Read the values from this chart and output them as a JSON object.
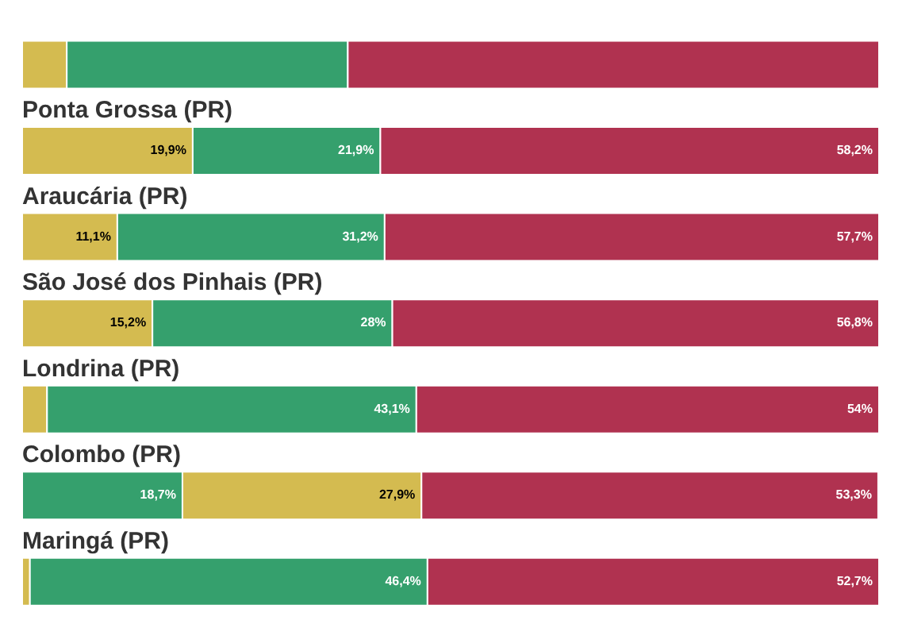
{
  "chart_data": {
    "type": "bar",
    "orientation": "horizontal",
    "stacked": true,
    "xlim": [
      0,
      100
    ],
    "categories": [
      null,
      "Ponta Grossa (PR)",
      "Araucária (PR)",
      "São José dos Pinhais (PR)",
      "Londrina (PR)",
      "Colombo (PR)",
      "Maringá (PR)"
    ],
    "series": [
      {
        "colors": [
          "#d4bb50",
          "#d4bb50",
          "#d4bb50",
          "#d4bb50",
          "#d4bb50",
          "#35a06d",
          "#d4bb50"
        ],
        "values": [
          5.2,
          19.9,
          11.1,
          15.2,
          2.9,
          18.7,
          0.9
        ],
        "value_labels": [
          null,
          "19,9%",
          "11,1%",
          "15,2%",
          null,
          "18,7%",
          null
        ]
      },
      {
        "colors": [
          "#35a06d",
          "#35a06d",
          "#35a06d",
          "#35a06d",
          "#35a06d",
          "#d4bb50",
          "#35a06d"
        ],
        "values": [
          32.8,
          21.9,
          31.2,
          28,
          43.1,
          27.9,
          46.4
        ],
        "value_labels": [
          null,
          "21,9%",
          "31,2%",
          "28%",
          "43,1%",
          "27,9%",
          "46,4%"
        ]
      },
      {
        "colors": [
          "#b03250",
          "#b03250",
          "#b03250",
          "#b03250",
          "#b03250",
          "#b03250",
          "#b03250"
        ],
        "values": [
          62.0,
          58.2,
          57.7,
          56.8,
          54,
          53.3,
          52.7
        ],
        "value_labels": [
          null,
          "58,2%",
          "57,7%",
          "56,8%",
          "54%",
          "53,3%",
          "52,7%"
        ]
      }
    ]
  }
}
